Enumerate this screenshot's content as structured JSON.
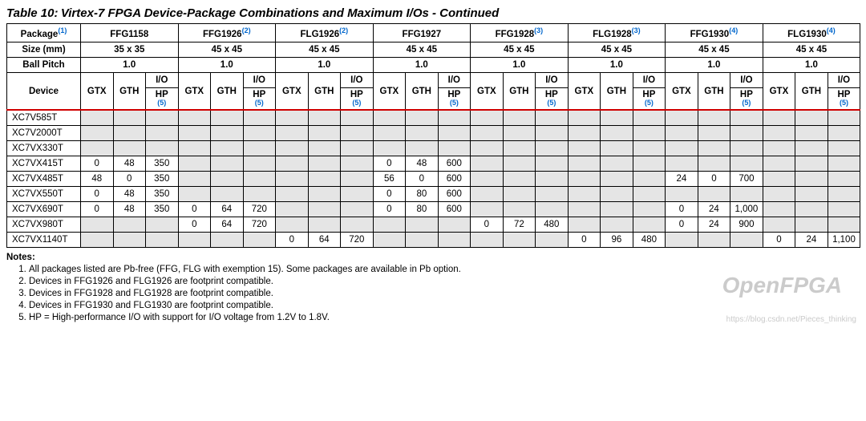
{
  "title_prefix": "Table 10:",
  "title_rest": "Virtex-7 FPGA Device-Package Combinations and Maximum I/Os - Continued",
  "header": {
    "package_label": "Package",
    "size_label": "Size (mm)",
    "pitch_label": "Ball Pitch",
    "device_label": "Device",
    "sub": {
      "gtx": "GTX",
      "gth": "GTH",
      "io": "I/O",
      "hp": "HP",
      "hp_note": "(5)"
    }
  },
  "packages": [
    {
      "name": "FFG1158",
      "note": "",
      "size": "35 x 35",
      "pitch": "1.0"
    },
    {
      "name": "FFG1926",
      "note": "(2)",
      "size": "45 x 45",
      "pitch": "1.0"
    },
    {
      "name": "FLG1926",
      "note": "(2)",
      "size": "45 x 45",
      "pitch": "1.0"
    },
    {
      "name": "FFG1927",
      "note": "",
      "size": "45 x 45",
      "pitch": "1.0"
    },
    {
      "name": "FFG1928",
      "note": "(3)",
      "size": "45 x 45",
      "pitch": "1.0"
    },
    {
      "name": "FLG1928",
      "note": "(3)",
      "size": "45 x 45",
      "pitch": "1.0"
    },
    {
      "name": "FFG1930",
      "note": "(4)",
      "size": "45 x 45",
      "pitch": "1.0"
    },
    {
      "name": "FLG1930",
      "note": "(4)",
      "size": "45 x 45",
      "pitch": "1.0"
    }
  ],
  "package_note_ref": "(1)",
  "devices": [
    {
      "name": "XC7V585T",
      "cells": [
        [
          "",
          "",
          ""
        ],
        [
          "",
          "",
          ""
        ],
        [
          "",
          "",
          ""
        ],
        [
          "",
          "",
          ""
        ],
        [
          "",
          "",
          ""
        ],
        [
          "",
          "",
          ""
        ],
        [
          "",
          "",
          ""
        ],
        [
          "",
          "",
          ""
        ]
      ]
    },
    {
      "name": "XC7V2000T",
      "cells": [
        [
          "",
          "",
          ""
        ],
        [
          "",
          "",
          ""
        ],
        [
          "",
          "",
          ""
        ],
        [
          "",
          "",
          ""
        ],
        [
          "",
          "",
          ""
        ],
        [
          "",
          "",
          ""
        ],
        [
          "",
          "",
          ""
        ],
        [
          "",
          "",
          ""
        ]
      ]
    },
    {
      "name": "XC7VX330T",
      "cells": [
        [
          "",
          "",
          ""
        ],
        [
          "",
          "",
          ""
        ],
        [
          "",
          "",
          ""
        ],
        [
          "",
          "",
          ""
        ],
        [
          "",
          "",
          ""
        ],
        [
          "",
          "",
          ""
        ],
        [
          "",
          "",
          ""
        ],
        [
          "",
          "",
          ""
        ]
      ]
    },
    {
      "name": "XC7VX415T",
      "cells": [
        [
          "0",
          "48",
          "350"
        ],
        [
          "",
          "",
          ""
        ],
        [
          "",
          "",
          ""
        ],
        [
          "0",
          "48",
          "600"
        ],
        [
          "",
          "",
          ""
        ],
        [
          "",
          "",
          ""
        ],
        [
          "",
          "",
          ""
        ],
        [
          "",
          "",
          ""
        ]
      ]
    },
    {
      "name": "XC7VX485T",
      "cells": [
        [
          "48",
          "0",
          "350"
        ],
        [
          "",
          "",
          ""
        ],
        [
          "",
          "",
          ""
        ],
        [
          "56",
          "0",
          "600"
        ],
        [
          "",
          "",
          ""
        ],
        [
          "",
          "",
          ""
        ],
        [
          "24",
          "0",
          "700"
        ],
        [
          "",
          "",
          ""
        ]
      ]
    },
    {
      "name": "XC7VX550T",
      "cells": [
        [
          "0",
          "48",
          "350"
        ],
        [
          "",
          "",
          ""
        ],
        [
          "",
          "",
          ""
        ],
        [
          "0",
          "80",
          "600"
        ],
        [
          "",
          "",
          ""
        ],
        [
          "",
          "",
          ""
        ],
        [
          "",
          "",
          ""
        ],
        [
          "",
          "",
          ""
        ]
      ]
    },
    {
      "name": "XC7VX690T",
      "cells": [
        [
          "0",
          "48",
          "350"
        ],
        [
          "0",
          "64",
          "720"
        ],
        [
          "",
          "",
          ""
        ],
        [
          "0",
          "80",
          "600"
        ],
        [
          "",
          "",
          ""
        ],
        [
          "",
          "",
          ""
        ],
        [
          "0",
          "24",
          "1,000"
        ],
        [
          "",
          "",
          ""
        ]
      ]
    },
    {
      "name": "XC7VX980T",
      "cells": [
        [
          "",
          "",
          ""
        ],
        [
          "0",
          "64",
          "720"
        ],
        [
          "",
          "",
          ""
        ],
        [
          "",
          "",
          ""
        ],
        [
          "0",
          "72",
          "480"
        ],
        [
          "",
          "",
          ""
        ],
        [
          "0",
          "24",
          "900"
        ],
        [
          "",
          "",
          ""
        ]
      ]
    },
    {
      "name": "XC7VX1140T",
      "cells": [
        [
          "",
          "",
          ""
        ],
        [
          "",
          "",
          ""
        ],
        [
          "0",
          "64",
          "720"
        ],
        [
          "",
          "",
          ""
        ],
        [
          "",
          "",
          ""
        ],
        [
          "0",
          "96",
          "480"
        ],
        [
          "",
          "",
          ""
        ],
        [
          "0",
          "24",
          "1,100"
        ]
      ]
    }
  ],
  "notes_label": "Notes:",
  "notes": [
    "All packages listed are Pb-free (FFG, FLG with exemption 15). Some packages are available in Pb option.",
    "Devices in FFG1926 and FLG1926 are footprint compatible.",
    "Devices in FFG1928 and FLG1928 are footprint compatible.",
    "Devices in FFG1930 and FLG1930 are footprint compatible.",
    "HP = High-performance I/O with support for I/O voltage from 1.2V to 1.8V."
  ],
  "watermark": "OpenFPGA",
  "watermark2": "https://blog.csdn.net/Pieces_thinking",
  "colors": {
    "shade": "#e5e5e5",
    "link": "#0066cc",
    "redline": "#d00000",
    "border": "#000000",
    "background": "#ffffff"
  },
  "fontsize": {
    "title": 15,
    "body": 12,
    "cell": 11.5,
    "sup": 9
  }
}
